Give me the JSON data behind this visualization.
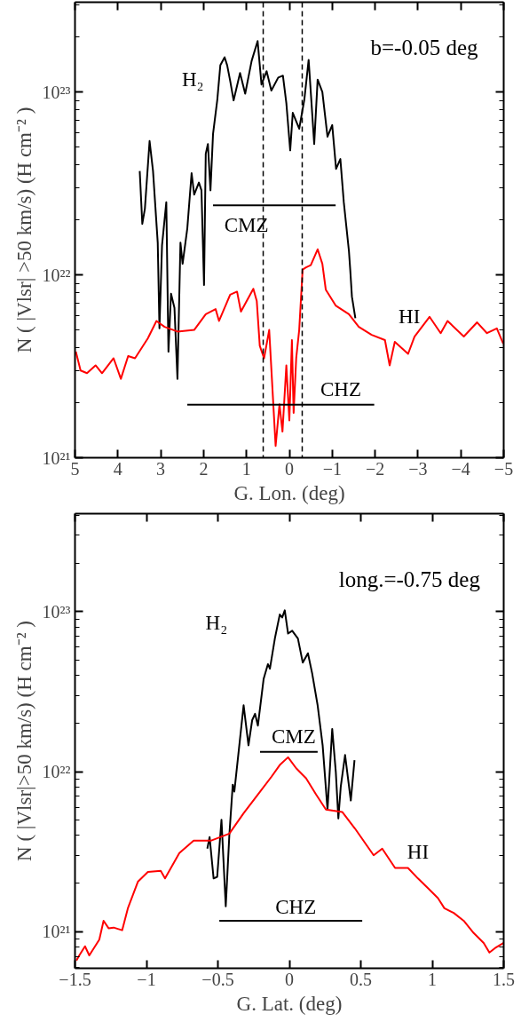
{
  "chart_data": [
    {
      "type": "line",
      "log": "y",
      "xlabel": "G. Lon. (deg)",
      "ylabel": "N ( |Vlsr| >50 km/s) (H cm⁻² )",
      "grid": false,
      "xlim": [
        5,
        -5
      ],
      "xticks": [
        5,
        4,
        3,
        2,
        1,
        0,
        -1,
        -2,
        -3,
        -4,
        -5
      ],
      "ylim": [
        1e+21,
        3.1e+23
      ],
      "yticks": [
        {
          "value": 1e+21,
          "label": "10²¹"
        },
        {
          "value": 1e+22,
          "label": "10²²"
        },
        {
          "value": 1e+23,
          "label": "10²³"
        }
      ],
      "series": [
        {
          "color": "#000000",
          "x": [
            3.49,
            3.43,
            3.37,
            3.26,
            3.18,
            3.07,
            3.03,
            2.97,
            2.87,
            2.82,
            2.76,
            2.68,
            2.61,
            2.54,
            2.49,
            2.38,
            2.28,
            2.22,
            2.11,
            2.05,
            1.99,
            1.95,
            1.9,
            1.84,
            1.78,
            1.68,
            1.61,
            1.51,
            1.45,
            1.38,
            1.3,
            1.15,
            1.03,
            0.88,
            0.74,
            0.65,
            0.53,
            0.42,
            0.26,
            0.15,
            0.07,
            -0.02,
            -0.08,
            -0.23,
            -0.35,
            -0.45,
            -0.58,
            -0.66,
            -0.77,
            -0.89,
            -1.0,
            -1.09,
            -1.19,
            -1.27,
            -1.39,
            -1.42,
            -1.46,
            -1.54
          ],
          "values": [
            3.7e+22,
            1.9e+22,
            2.3e+22,
            5.4e+22,
            3.7e+22,
            1.5e+22,
            5.1e+21,
            1.45e+22,
            2.5e+22,
            3.8e+21,
            7.9e+21,
            6.6e+21,
            2.7e+21,
            1.5e+22,
            1.15e+22,
            1.8e+22,
            3.6e+22,
            2.75e+22,
            3.2e+22,
            2.9e+22,
            8.8e+21,
            4.6e+22,
            5.2e+22,
            2.9e+22,
            5.9e+22,
            9.1e+22,
            1.4e+23,
            1.55e+23,
            1.4e+23,
            1.15e+23,
            9e+22,
            1.27e+23,
            9.8e+22,
            1.48e+23,
            1.9e+23,
            1.1e+23,
            1.3e+23,
            1.02e+23,
            1.2e+23,
            1.23e+23,
            8.7e+22,
            4.8e+22,
            7.7e+22,
            6.3e+22,
            9.1e+22,
            1.5e+23,
            5.2e+22,
            1.17e+23,
            1e+23,
            5.7e+22,
            6.6e+22,
            3.8e+22,
            4.3e+22,
            2.5e+22,
            1.35e+22,
            1.07e+22,
            7.6e+21,
            5.8e+21
          ]
        },
        {
          "color": "#ff0000",
          "x": [
            4.98,
            4.87,
            4.72,
            4.52,
            4.37,
            4.1,
            3.93,
            3.76,
            3.6,
            3.3,
            3.1,
            2.91,
            2.61,
            2.22,
            1.95,
            1.72,
            1.64,
            1.38,
            1.22,
            1.13,
            0.84,
            0.76,
            0.69,
            0.59,
            0.47,
            0.32,
            0.23,
            0.16,
            0.07,
            0.0,
            -0.06,
            -0.1,
            -0.16,
            -0.23,
            -0.31,
            -0.39,
            -0.5,
            -0.66,
            -0.77,
            -0.85,
            -1.08,
            -1.39,
            -1.62,
            -1.92,
            -2.23,
            -2.34,
            -2.46,
            -2.77,
            -2.92,
            -3.27,
            -3.53,
            -3.69,
            -4.07,
            -4.38,
            -4.61,
            -4.84,
            -4.99
          ],
          "values": [
            3.8e+21,
            3e+21,
            2.9e+21,
            3.2e+21,
            2.9e+21,
            3.5e+21,
            2.7e+21,
            3.6e+21,
            3.5e+21,
            4.5e+21,
            5.6e+21,
            5.2e+21,
            4.9e+21,
            5e+21,
            6.1e+21,
            6.5e+21,
            5.6e+21,
            7.8e+21,
            8.1e+21,
            6.3e+21,
            8.4e+21,
            7.2e+21,
            4.1e+21,
            3.5e+21,
            5e+21,
            1.16e+21,
            1.96e+21,
            1.39e+21,
            3.2e+21,
            1.6e+21,
            4.4e+21,
            1.76e+21,
            3.5e+21,
            5e+21,
            1.07e+22,
            1.1e+22,
            1.13e+22,
            1.38e+22,
            1.15e+22,
            8.3e+21,
            6.8e+21,
            6.1e+21,
            5.2e+21,
            4.7e+21,
            4.4e+21,
            3.2e+21,
            4.3e+21,
            3.7e+21,
            4.6e+21,
            5.9e+21,
            4.8e+21,
            5.6e+21,
            4.6e+21,
            5.5e+21,
            4.8e+21,
            5.1e+21,
            4.2e+21
          ]
        },
        {
          "color": "#000000",
          "x": [
            1.78,
            -1.08
          ],
          "values": [
            2.4e+22,
            2.4e+22
          ]
        },
        {
          "color": "#000000",
          "x": [
            2.38,
            -1.98
          ],
          "values": [
            1.95e+21,
            1.95e+21
          ]
        }
      ],
      "ref_lines": [
        {
          "axis": "x",
          "value": 0.61,
          "line_style": "dashed",
          "color": "#000000"
        },
        {
          "axis": "x",
          "value": -0.3,
          "line_style": "dashed",
          "color": "#000000"
        }
      ],
      "annotations": [
        "b=-0.05 deg",
        "H₂",
        "CMZ",
        "CHZ",
        "HI"
      ]
    },
    {
      "type": "line",
      "log": "y",
      "xlabel": "G. Lat. (deg)",
      "ylabel": "N ( |Vlsr|>50 km/s) (H cm⁻² )",
      "grid": false,
      "xlim": [
        -1.5,
        1.5
      ],
      "xticks": [
        -1.5,
        -1,
        -0.5,
        0,
        0.5,
        1,
        1.5
      ],
      "ylim": [
        5.9e+20,
        4.1e+23
      ],
      "yticks": [
        {
          "value": 1e+21,
          "label": "10²¹"
        },
        {
          "value": 1e+22,
          "label": "10²²"
        },
        {
          "value": 1e+23,
          "label": "10²³"
        }
      ],
      "series": [
        {
          "color": "#000000",
          "x": [
            -0.574,
            -0.558,
            -0.53,
            -0.505,
            -0.475,
            -0.445,
            -0.42,
            -0.396,
            -0.385,
            -0.32,
            -0.286,
            -0.26,
            -0.24,
            -0.22,
            -0.18,
            -0.15,
            -0.136,
            -0.1,
            -0.067,
            -0.05,
            -0.032,
            -0.009,
            0.02,
            0.06,
            0.094,
            0.13,
            0.16,
            0.198,
            0.233,
            0.267,
            0.3,
            0.325,
            0.343,
            0.36,
            0.39,
            0.43,
            0.456
          ],
          "values": [
            3.3e+21,
            3.9e+21,
            2.15e+21,
            2.2e+21,
            5e+21,
            1.44e+21,
            4e+21,
            8.3e+21,
            7.5e+21,
            2.6e+22,
            1.46e+22,
            2.1e+22,
            2.3e+22,
            1.94e+22,
            3.8e+22,
            4.7e+22,
            4.4e+22,
            6.9e+22,
            9.6e+22,
            9.2e+22,
            1.02e+23,
            7.3e+22,
            7.6e+22,
            6.8e+22,
            4.8e+22,
            5.5e+22,
            4.1e+22,
            2.6e+22,
            1.46e+22,
            5.8e+21,
            1.85e+22,
            1e+22,
            5.1e+21,
            8.1e+21,
            1.27e+22,
            6.6e+21,
            1.18e+22
          ]
        },
        {
          "color": "#ff0000",
          "x": [
            -1.49,
            -1.47,
            -1.43,
            -1.4,
            -1.33,
            -1.3,
            -1.265,
            -1.23,
            -1.17,
            -1.13,
            -1.06,
            -0.99,
            -0.9,
            -0.87,
            -0.77,
            -0.67,
            -0.55,
            -0.42,
            -0.32,
            -0.205,
            -0.125,
            -0.067,
            -0.009,
            0.048,
            0.117,
            0.187,
            0.256,
            0.37,
            0.46,
            0.59,
            0.65,
            0.74,
            0.83,
            0.9,
            0.97,
            1.04,
            1.085,
            1.15,
            1.22,
            1.29,
            1.36,
            1.4,
            1.44,
            1.5
          ],
          "values": [
            6.6e+20,
            7.1e+20,
            8.1e+20,
            7.1e+20,
            8.9e+20,
            1.17e+21,
            1.05e+21,
            1.06e+21,
            1.02e+21,
            1.4e+21,
            2.05e+21,
            2.36e+21,
            2.4e+21,
            2.15e+21,
            3.1e+21,
            3.7e+21,
            3.7e+21,
            4.1e+21,
            5.5e+21,
            7.5e+21,
            9.3e+21,
            1.1e+22,
            1.23e+22,
            1.05e+22,
            9.1e+21,
            7.2e+21,
            5.8e+21,
            5.6e+21,
            4.4e+21,
            3e+21,
            3.3e+21,
            2.5e+21,
            2.5e+21,
            2.15e+21,
            1.87e+21,
            1.62e+21,
            1.4e+21,
            1.31e+21,
            1.17e+21,
            9.8e+20,
            8.5e+20,
            7.4e+20,
            7.9e+20,
            8.5e+20
          ]
        },
        {
          "color": "#000000",
          "x": [
            -0.205,
            0.198
          ],
          "values": [
            1.33e+22,
            1.33e+22
          ]
        },
        {
          "color": "#000000",
          "x": [
            -0.49,
            0.51
          ],
          "values": [
            1.17e+21,
            1.17e+21
          ]
        }
      ],
      "annotations": [
        "long.=-0.75 deg",
        "H₂",
        "CMZ",
        "CHZ",
        "HI"
      ]
    }
  ]
}
